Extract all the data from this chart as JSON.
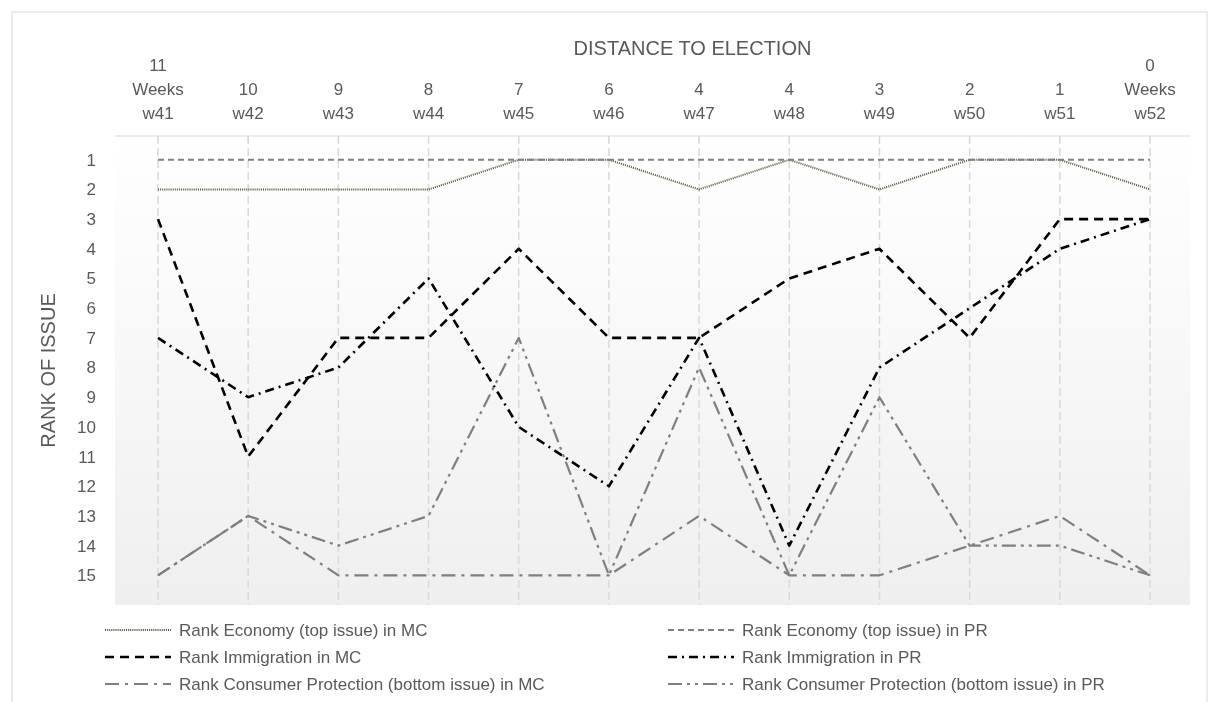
{
  "chart_data": {
    "type": "line",
    "xlabel": "DISTANCE TO ELECTION",
    "ylabel": "RANK OF ISSUE",
    "categories": [
      "11\nWeeks\nw41",
      "10\nw42",
      "9\nw43",
      "8\nw44",
      "7\nw45",
      "6\nw46",
      "4\nw47",
      "4\nw48",
      "3\nw49",
      "2\nw50",
      "1\nw51",
      "0\nWeeks\nw52"
    ],
    "ylim": [
      16,
      0.2
    ],
    "yticks": [
      1,
      2,
      3,
      4,
      5,
      6,
      7,
      8,
      9,
      10,
      11,
      12,
      13,
      14,
      15
    ],
    "grid": "x",
    "legend": "bottom",
    "series": [
      {
        "name": "Rank Economy (top issue) in MC",
        "color": "#5a5a3c",
        "line_style": "dotted",
        "values": [
          2,
          2,
          2,
          2,
          1,
          1,
          2,
          1,
          2,
          1,
          1,
          2
        ]
      },
      {
        "name": "Rank Economy (top issue) in PR",
        "color": "#7f7f7f",
        "line_style": "dashed",
        "values": [
          1,
          1,
          1,
          1,
          1,
          1,
          1,
          1,
          1,
          1,
          1,
          1
        ]
      },
      {
        "name": "Rank Immigration in MC",
        "color": "#000000",
        "line_style": "dashed",
        "values": [
          3,
          11,
          7,
          7,
          4,
          7,
          7,
          5,
          4,
          7,
          3,
          3
        ]
      },
      {
        "name": "Rank Immigration in PR",
        "color": "#000000",
        "line_style": "dashdot",
        "values": [
          7,
          9,
          8,
          5,
          10,
          12,
          7,
          14,
          8,
          6,
          4,
          3
        ]
      },
      {
        "name": "Rank Consumer Protection (bottom issue) in MC",
        "color": "#7f7f7f",
        "line_style": "dashdot",
        "values": [
          15,
          13,
          15,
          15,
          15,
          15,
          13,
          15,
          15,
          14,
          13,
          15
        ]
      },
      {
        "name": "Rank Consumer Protection (bottom issue) in PR",
        "color": "#7f7f7f",
        "line_style": "dashdotdot",
        "values": [
          15,
          13,
          14,
          13,
          7,
          15,
          8,
          15,
          9,
          14,
          14,
          15
        ]
      }
    ]
  }
}
